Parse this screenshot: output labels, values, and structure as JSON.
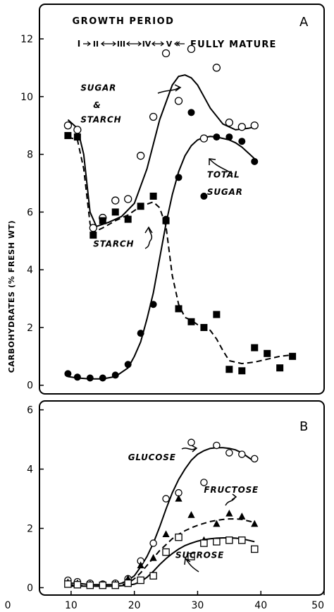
{
  "chart_data": [
    {
      "type": "scatter",
      "panel_label": "A",
      "ylabel": "CARBOHYDRATES (% FRESH WT)",
      "xlim": [
        5,
        50
      ],
      "ylim": [
        -0.3,
        13.2
      ],
      "xticks": [],
      "yticks": [
        0,
        2,
        4,
        6,
        8,
        10,
        12
      ],
      "header": {
        "title": "GROWTH PERIOD",
        "stages": [
          "I",
          "II",
          "III",
          "IV",
          "V"
        ],
        "mature_label": "FULLY MATURE"
      },
      "annotations": [
        {
          "text": "SUGAR",
          "x": 11.5,
          "y": 10.2
        },
        {
          "text": "&",
          "x": 13.5,
          "y": 9.6
        },
        {
          "text": "STARCH",
          "x": 11.5,
          "y": 9.1
        },
        {
          "text": "TOTAL",
          "x": 31.5,
          "y": 7.2
        },
        {
          "text": "SUGAR",
          "x": 31.5,
          "y": 6.6
        },
        {
          "text": "STARCH",
          "x": 13.5,
          "y": 4.8
        }
      ],
      "series": [
        {
          "name": "SUGAR & STARCH",
          "marker": "open-circle",
          "x": [
            9.5,
            11,
            13.5,
            15,
            17,
            19,
            21,
            23,
            25,
            27,
            29,
            31,
            33,
            35,
            37,
            39
          ],
          "y": [
            9.0,
            8.85,
            5.45,
            5.8,
            6.4,
            6.45,
            7.95,
            9.3,
            11.5,
            9.85,
            11.65,
            8.55,
            11.0,
            9.1,
            8.95,
            9.0
          ],
          "curve_x": [
            9.5,
            11,
            12,
            13,
            14,
            16,
            18,
            20,
            22,
            24,
            26,
            27,
            28,
            29,
            30,
            31,
            32,
            34,
            36,
            38,
            39
          ],
          "curve_y": [
            9.2,
            8.9,
            8.0,
            6.0,
            5.5,
            5.65,
            5.85,
            6.3,
            7.5,
            9.2,
            10.4,
            10.7,
            10.75,
            10.65,
            10.4,
            10.0,
            9.6,
            9.05,
            8.85,
            8.9,
            8.95
          ]
        },
        {
          "name": "STARCH",
          "marker": "filled-square",
          "x": [
            9.5,
            11,
            13.5,
            15,
            17,
            19,
            21,
            23,
            25,
            27,
            29,
            31,
            33,
            35,
            37,
            39,
            41,
            43,
            45
          ],
          "y": [
            8.65,
            8.6,
            5.2,
            5.7,
            6.0,
            5.75,
            6.2,
            6.55,
            5.7,
            2.65,
            2.2,
            2.0,
            2.45,
            0.55,
            0.5,
            1.3,
            1.1,
            0.6,
            1.0
          ],
          "curve_x": [
            9.5,
            11,
            12,
            13,
            13.5,
            15,
            17,
            19,
            21,
            23,
            24,
            25,
            26,
            27,
            28,
            29,
            30,
            31,
            32,
            33,
            34,
            35,
            37,
            39,
            41,
            43,
            45
          ],
          "curve_y": [
            8.6,
            8.5,
            7.5,
            5.6,
            5.3,
            5.45,
            5.7,
            5.9,
            6.2,
            6.35,
            6.15,
            5.5,
            3.8,
            2.8,
            2.35,
            2.25,
            2.1,
            2.0,
            1.9,
            1.6,
            1.2,
            0.85,
            0.75,
            0.8,
            0.9,
            1.0,
            1.05
          ]
        },
        {
          "name": "TOTAL SUGAR",
          "marker": "filled-circle",
          "x": [
            9.5,
            11,
            13,
            15,
            17,
            19,
            21,
            23,
            25,
            27,
            29,
            31,
            33,
            35,
            37,
            39
          ],
          "y": [
            0.4,
            0.28,
            0.25,
            0.25,
            0.35,
            0.72,
            1.8,
            2.8,
            5.75,
            7.2,
            9.45,
            6.55,
            8.6,
            8.6,
            8.45,
            7.75
          ],
          "curve_x": [
            9.5,
            11,
            13,
            15,
            17,
            19,
            20,
            21,
            22,
            23,
            24,
            25,
            26,
            27,
            28,
            29,
            30,
            31,
            32,
            33,
            34,
            35,
            36,
            37,
            38,
            39
          ],
          "curve_y": [
            0.3,
            0.25,
            0.22,
            0.22,
            0.3,
            0.6,
            1.0,
            1.5,
            2.3,
            3.2,
            4.4,
            5.6,
            6.6,
            7.4,
            7.95,
            8.3,
            8.5,
            8.58,
            8.62,
            8.6,
            8.55,
            8.5,
            8.4,
            8.25,
            8.05,
            7.85
          ]
        }
      ]
    },
    {
      "type": "scatter",
      "panel_label": "B",
      "xlim": [
        5,
        50
      ],
      "ylim": [
        -0.25,
        6.3
      ],
      "xticks": [
        0,
        10,
        20,
        30,
        40,
        50
      ],
      "yticks": [
        0,
        2,
        4,
        6
      ],
      "annotations": [
        {
          "text": "GLUCOSE",
          "x": 19,
          "y": 4.3
        },
        {
          "text": "FRUCTOSE",
          "x": 31,
          "y": 3.2
        },
        {
          "text": "SUCROSE",
          "x": 26.5,
          "y": 1.0
        }
      ],
      "series": [
        {
          "name": "GLUCOSE",
          "marker": "open-circle",
          "x": [
            9.5,
            11,
            13,
            15,
            17,
            19,
            21,
            23,
            25,
            27,
            29,
            31,
            33,
            35,
            37,
            39
          ],
          "y": [
            0.25,
            0.2,
            0.15,
            0.12,
            0.15,
            0.3,
            0.9,
            1.5,
            3.0,
            3.2,
            4.9,
            3.55,
            4.8,
            4.55,
            4.5,
            4.35
          ],
          "curve_x": [
            9.5,
            11,
            13,
            15,
            17,
            18,
            19,
            20,
            21,
            22,
            23,
            24,
            25,
            26,
            27,
            28,
            29,
            30,
            31,
            32,
            33,
            34,
            35,
            36,
            37,
            38,
            39
          ],
          "curve_y": [
            0.15,
            0.15,
            0.1,
            0.1,
            0.1,
            0.15,
            0.25,
            0.4,
            0.7,
            1.05,
            1.5,
            2.05,
            2.65,
            3.2,
            3.65,
            4.0,
            4.3,
            4.5,
            4.62,
            4.7,
            4.72,
            4.72,
            4.7,
            4.65,
            4.55,
            4.4,
            4.25
          ]
        },
        {
          "name": "FRUCTOSE",
          "marker": "filled-triangle",
          "x": [
            9.5,
            11,
            13,
            15,
            17,
            19,
            21,
            23,
            25,
            27,
            29,
            31,
            33,
            35,
            37,
            39
          ],
          "y": [
            0.18,
            0.15,
            0.12,
            0.1,
            0.12,
            0.3,
            0.75,
            1.0,
            1.8,
            3.0,
            2.45,
            1.6,
            2.15,
            2.5,
            2.4,
            2.15
          ],
          "curve_x": [
            9.5,
            13,
            17,
            19,
            20,
            21,
            22,
            23,
            24,
            25,
            26,
            27,
            28,
            29,
            30,
            31,
            32,
            33,
            34,
            35,
            36,
            37,
            38,
            39
          ],
          "curve_y": [
            0.1,
            0.05,
            0.05,
            0.15,
            0.3,
            0.5,
            0.75,
            1.0,
            1.25,
            1.45,
            1.65,
            1.8,
            1.92,
            2.02,
            2.1,
            2.17,
            2.23,
            2.27,
            2.3,
            2.32,
            2.32,
            2.3,
            2.25,
            2.2
          ]
        },
        {
          "name": "SUCROSE",
          "marker": "open-square",
          "x": [
            9.5,
            11,
            13,
            15,
            17,
            19,
            21,
            23,
            25,
            27,
            29,
            31,
            33,
            35,
            37,
            39
          ],
          "y": [
            0.12,
            0.1,
            0.08,
            0.08,
            0.08,
            0.15,
            0.25,
            0.4,
            1.2,
            1.7,
            1.05,
            1.5,
            1.55,
            1.6,
            1.6,
            1.3
          ],
          "curve_x": [
            9.5,
            13,
            17,
            19,
            20,
            21,
            22,
            23,
            24,
            25,
            26,
            27,
            28,
            29,
            30,
            31,
            32,
            33,
            34,
            35,
            36,
            37,
            38,
            39
          ],
          "curve_y": [
            0.05,
            0.05,
            0.05,
            0.08,
            0.12,
            0.2,
            0.35,
            0.55,
            0.78,
            0.98,
            1.15,
            1.3,
            1.42,
            1.5,
            1.57,
            1.62,
            1.65,
            1.67,
            1.68,
            1.68,
            1.67,
            1.65,
            1.6,
            1.55
          ]
        }
      ]
    }
  ]
}
